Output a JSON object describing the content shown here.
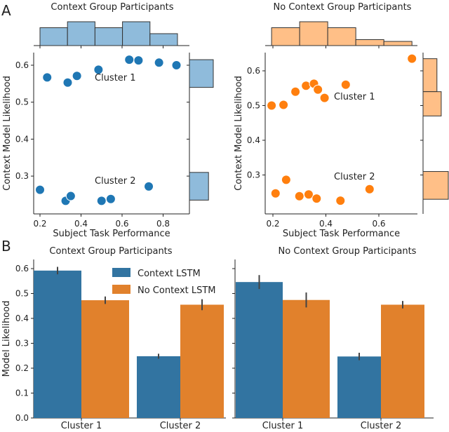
{
  "panel_labels": [
    "A",
    "B"
  ],
  "colors": {
    "context": "#1f77b4",
    "no_context": "#ff7f0e",
    "context_hist": "#8fbbdb",
    "no_context_hist": "#ffbf87",
    "context_bar": "#3274a1",
    "no_context_bar": "#e1812c"
  },
  "chart_data": [
    {
      "type": "scatter",
      "title": "Context Group Participants",
      "xlabel": "Subject Task Performance",
      "ylabel": "Context Model Likelihood",
      "xticks": [
        "0.2",
        "0.4",
        "0.6",
        "0.8"
      ],
      "yticks": [
        "0.3",
        "0.4",
        "0.5",
        "0.6"
      ],
      "annotations": [
        "Cluster 1",
        "Cluster 2"
      ],
      "points": [
        [
          0.235,
          0.567
        ],
        [
          0.335,
          0.553
        ],
        [
          0.38,
          0.571
        ],
        [
          0.485,
          0.588
        ],
        [
          0.635,
          0.615
        ],
        [
          0.68,
          0.613
        ],
        [
          0.78,
          0.607
        ],
        [
          0.865,
          0.6
        ],
        [
          0.2,
          0.263
        ],
        [
          0.325,
          0.233
        ],
        [
          0.35,
          0.246
        ],
        [
          0.5,
          0.233
        ],
        [
          0.545,
          0.238
        ],
        [
          0.73,
          0.272
        ]
      ],
      "x_marginal": {
        "bin_edges": [
          0.2,
          0.334,
          0.468,
          0.602,
          0.736,
          0.87
        ],
        "heights": [
          3,
          4,
          3,
          4,
          2
        ]
      },
      "y_marginal": {
        "bins": [
          [
            0.54,
            0.615,
            1.0
          ],
          [
            0.235,
            0.31,
            0.8
          ]
        ]
      }
    },
    {
      "type": "scatter",
      "title": "No Context Group Participants",
      "xlabel": "Subject Task Performance",
      "ylabel": "Context Model Likelihood",
      "xticks": [
        "0.2",
        "0.4",
        "0.6"
      ],
      "yticks": [
        "0.3",
        "0.4",
        "0.5",
        "0.6"
      ],
      "annotations": [
        "Cluster 1",
        "Cluster 2"
      ],
      "points": [
        [
          0.195,
          0.5
        ],
        [
          0.24,
          0.502
        ],
        [
          0.285,
          0.54
        ],
        [
          0.325,
          0.557
        ],
        [
          0.355,
          0.563
        ],
        [
          0.37,
          0.546
        ],
        [
          0.395,
          0.522
        ],
        [
          0.475,
          0.56
        ],
        [
          0.725,
          0.635
        ],
        [
          0.21,
          0.247
        ],
        [
          0.25,
          0.286
        ],
        [
          0.3,
          0.239
        ],
        [
          0.335,
          0.244
        ],
        [
          0.365,
          0.232
        ],
        [
          0.455,
          0.226
        ],
        [
          0.565,
          0.259
        ]
      ],
      "x_marginal": {
        "bin_edges": [
          0.195,
          0.301,
          0.407,
          0.513,
          0.619,
          0.725
        ],
        "heights": [
          3,
          4,
          3,
          1,
          0.7
        ]
      },
      "y_marginal": {
        "bins": [
          [
            0.54,
            0.635,
            0.55
          ],
          [
            0.47,
            0.54,
            0.72
          ],
          [
            0.23,
            0.31,
            1.0
          ]
        ]
      }
    },
    {
      "type": "bar",
      "title": "Context Group Participants",
      "ylabel": "Model Likelihood",
      "categories": [
        "Cluster 1",
        "Cluster 2"
      ],
      "yticks": [
        "0.0",
        "0.1",
        "0.2",
        "0.3",
        "0.4",
        "0.5",
        "0.6"
      ],
      "ylim": [
        0,
        0.62
      ],
      "legend": "top-right",
      "series": [
        {
          "name": "Context LSTM",
          "values": [
            0.592,
            0.248
          ],
          "err": [
            0.015,
            0.01
          ]
        },
        {
          "name": "No Context LSTM",
          "values": [
            0.473,
            0.455
          ],
          "err": [
            0.015,
            0.022
          ]
        }
      ]
    },
    {
      "type": "bar",
      "title": "No Context Group Participants",
      "categories": [
        "Cluster 1",
        "Cluster 2"
      ],
      "ylim": [
        0,
        0.62
      ],
      "series": [
        {
          "name": "Context LSTM",
          "values": [
            0.546,
            0.247
          ],
          "err": [
            0.028,
            0.015
          ]
        },
        {
          "name": "No Context LSTM",
          "values": [
            0.474,
            0.455
          ],
          "err": [
            0.03,
            0.015
          ]
        }
      ]
    }
  ]
}
